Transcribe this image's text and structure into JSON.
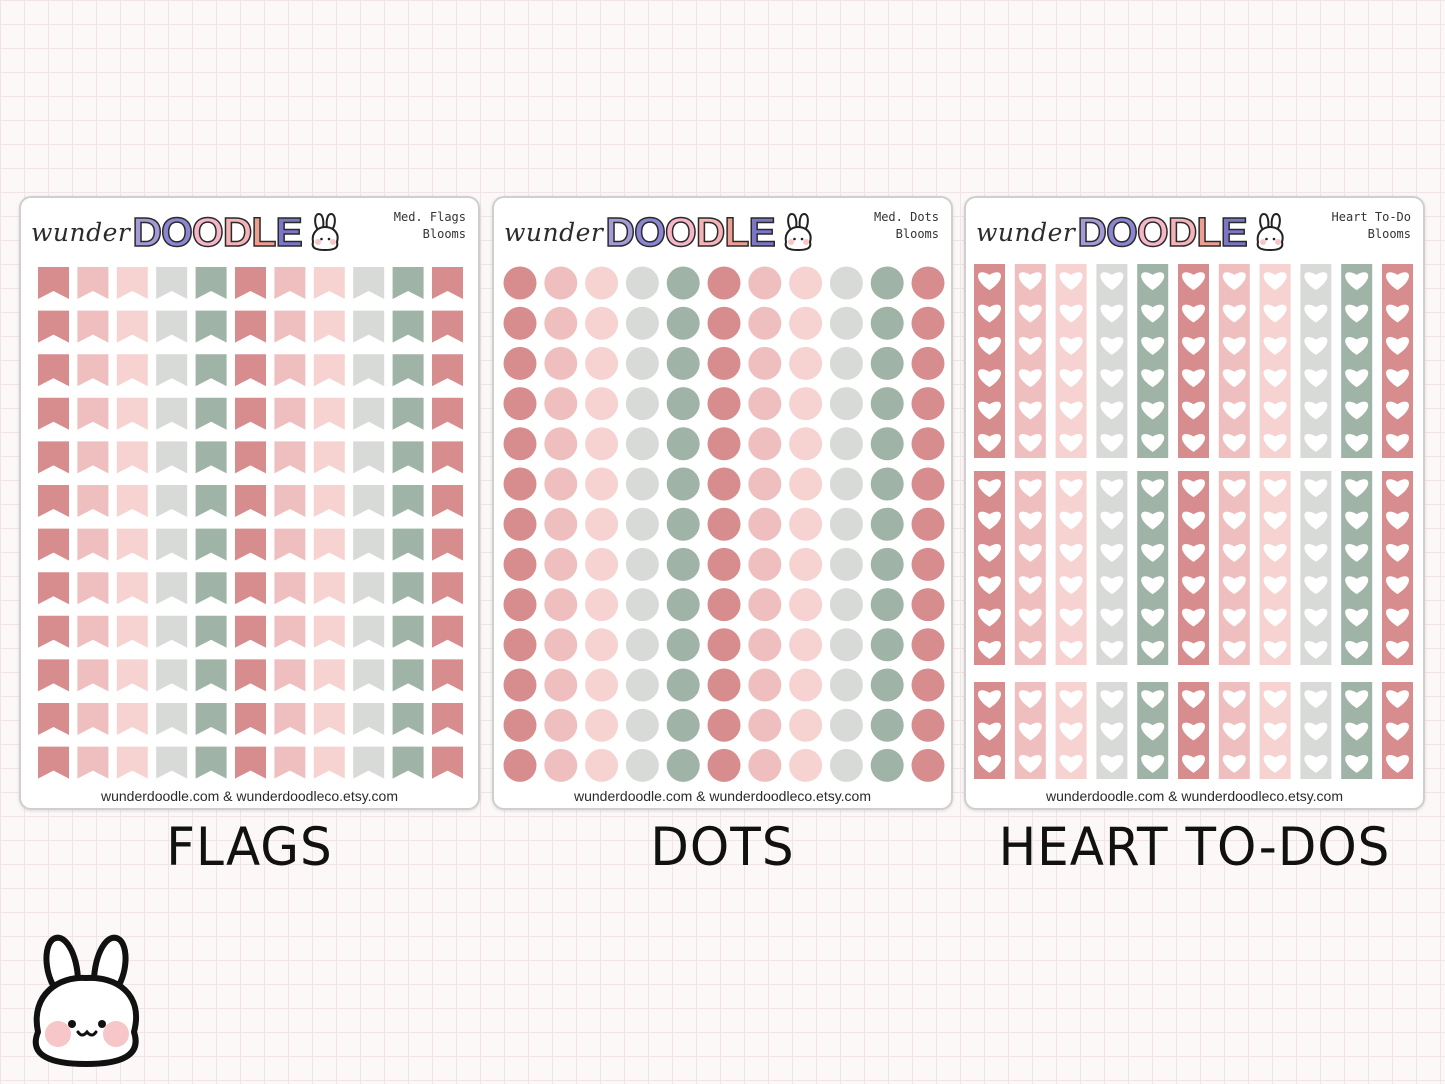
{
  "palette": {
    "rose": "#d78c8e",
    "blush": "#efbfc0",
    "pale_pink": "#f6d2d1",
    "light_gray": "#d8dad7",
    "sage": "#9fb3a6"
  },
  "logo": {
    "script_text": "wunder",
    "block_letters": [
      "D",
      "O",
      "O",
      "D",
      "L",
      "E"
    ],
    "block_colors": [
      "#a39ad6",
      "#8c86d2",
      "#f5b6c8",
      "#f4b3b7",
      "#ef9f92",
      "#7c76c7"
    ]
  },
  "sheets": [
    {
      "id": "flags",
      "label_line1": "Med. Flags",
      "label_line2": "Blooms",
      "footer": "wunderdoodle.com & wunderdoodleco.etsy.com",
      "caption": "FLAGS",
      "sticker_type": "flag",
      "columns": 11,
      "rows": 12,
      "column_colors": [
        "rose",
        "blush",
        "pale_pink",
        "light_gray",
        "sage",
        "rose",
        "blush",
        "pale_pink",
        "light_gray",
        "sage",
        "rose"
      ]
    },
    {
      "id": "dots",
      "label_line1": "Med. Dots",
      "label_line2": "Blooms",
      "footer": "wunderdoodle.com & wunderdoodleco.etsy.com",
      "caption": "DOTS",
      "sticker_type": "dot",
      "columns": 11,
      "rows": 13,
      "column_colors": [
        "rose",
        "blush",
        "pale_pink",
        "light_gray",
        "sage",
        "rose",
        "blush",
        "pale_pink",
        "light_gray",
        "sage",
        "rose"
      ]
    },
    {
      "id": "hearts",
      "label_line1": "Heart To-Do",
      "label_line2": "Blooms",
      "footer": "wunderdoodle.com & wunderdoodleco.etsy.com",
      "caption": "HEART TO-DOS",
      "sticker_type": "heart-strip",
      "columns": 11,
      "strip_heart_counts": [
        6,
        6,
        3
      ],
      "column_colors": [
        "rose",
        "blush",
        "pale_pink",
        "light_gray",
        "sage",
        "rose",
        "blush",
        "pale_pink",
        "light_gray",
        "sage",
        "rose"
      ]
    }
  ],
  "mascot": {
    "icon": "bunny-mascot-icon"
  }
}
